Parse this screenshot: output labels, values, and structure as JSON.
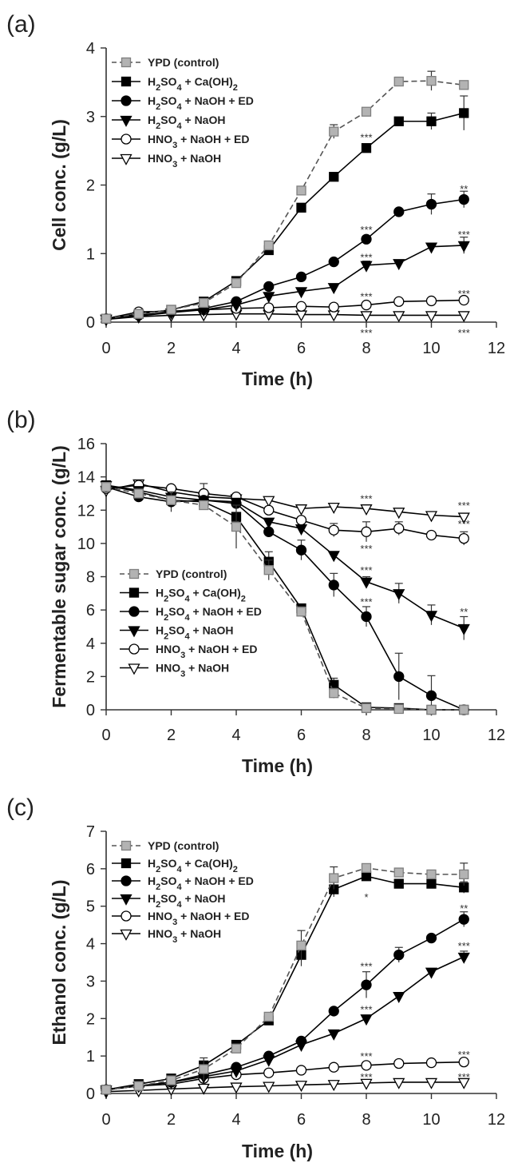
{
  "chart_data": [
    {
      "type": "line",
      "panel_label": "(a)",
      "xlabel": "Time (h)",
      "ylabel": "Cell conc. (g/L)",
      "xlim": [
        0,
        12
      ],
      "ylim": [
        0,
        4
      ],
      "xticks": [
        "0",
        "2",
        "4",
        "6",
        "8",
        "10",
        "12"
      ],
      "yticks": [
        "0",
        "1",
        "2",
        "3",
        "4"
      ],
      "legend_position": "top-left",
      "x": [
        0,
        1,
        2,
        3,
        4,
        5,
        6,
        7,
        8,
        9,
        10,
        11
      ],
      "series": [
        {
          "name": "YPD (control)",
          "values": [
            0.05,
            0.12,
            0.18,
            0.28,
            0.57,
            1.12,
            1.92,
            2.78,
            3.07,
            3.51,
            3.52,
            3.46
          ],
          "err": [
            0,
            0,
            0,
            0,
            0,
            0,
            0,
            0.1,
            0,
            0,
            0.14,
            0
          ]
        },
        {
          "name": "H2SO4 + Ca(OH)2",
          "values": [
            0.05,
            0.12,
            0.18,
            0.3,
            0.6,
            1.05,
            1.67,
            2.12,
            2.54,
            2.93,
            2.93,
            3.05
          ],
          "err": [
            0,
            0,
            0,
            0,
            0,
            0,
            0,
            0,
            0,
            0,
            0.12,
            0.25
          ]
        },
        {
          "name": "H2SO4 + NaOH + ED",
          "values": [
            0.05,
            0.1,
            0.15,
            0.2,
            0.3,
            0.52,
            0.66,
            0.88,
            1.21,
            1.61,
            1.72,
            1.79
          ],
          "err": [
            0,
            0,
            0,
            0,
            0,
            0,
            0,
            0,
            0,
            0,
            0.15,
            0.12
          ]
        },
        {
          "name": "H2SO4 + NaOH",
          "values": [
            0.05,
            0.09,
            0.14,
            0.18,
            0.25,
            0.38,
            0.45,
            0.51,
            0.83,
            0.86,
            1.1,
            1.12
          ],
          "err": [
            0,
            0,
            0,
            0,
            0,
            0,
            0,
            0,
            0.06,
            0,
            0.05,
            0.12
          ]
        },
        {
          "name": "HNO3 + NaOH + ED",
          "values": [
            0.05,
            0.15,
            0.16,
            0.18,
            0.2,
            0.21,
            0.23,
            0.22,
            0.25,
            0.3,
            0.31,
            0.32
          ],
          "err": [
            0,
            0,
            0,
            0,
            0,
            0,
            0,
            0,
            0,
            0,
            0,
            0.04
          ]
        },
        {
          "name": "HNO3 + NaOH",
          "values": [
            0.04,
            0.08,
            0.1,
            0.11,
            0.12,
            0.12,
            0.11,
            0.11,
            0.1,
            0.1,
            0.1,
            0.1
          ],
          "err": [
            0,
            0,
            0,
            0,
            0,
            0,
            0,
            0,
            0,
            0,
            0,
            0
          ]
        }
      ],
      "annotations": [
        {
          "text": "***",
          "x": 8,
          "y": 2.7
        },
        {
          "text": "**",
          "x": 11,
          "y": 1.95
        },
        {
          "text": "***",
          "x": 8,
          "y": 1.35
        },
        {
          "text": "***",
          "x": 8,
          "y": 0.95
        },
        {
          "text": "***",
          "x": 11,
          "y": 1.28
        },
        {
          "text": "***",
          "x": 8,
          "y": 0.38
        },
        {
          "text": "***",
          "x": 11,
          "y": 0.42
        },
        {
          "text": "***",
          "x": 8,
          "y": -0.15
        },
        {
          "text": "***",
          "x": 11,
          "y": -0.15
        }
      ]
    },
    {
      "type": "line",
      "panel_label": "(b)",
      "xlabel": "Time (h)",
      "ylabel": "Fermentable sugar conc. (g/L)",
      "xlim": [
        0,
        12
      ],
      "ylim": [
        0,
        16
      ],
      "xticks": [
        "0",
        "2",
        "4",
        "6",
        "8",
        "10",
        "12"
      ],
      "yticks": [
        "0",
        "2",
        "4",
        "6",
        "8",
        "10",
        "12",
        "14",
        "16"
      ],
      "legend_position": "bottom-left",
      "x": [
        0,
        1,
        2,
        3,
        4,
        5,
        6,
        7,
        8,
        9,
        10,
        11
      ],
      "series": [
        {
          "name": "YPD (control)",
          "values": [
            13.4,
            13.0,
            12.6,
            12.3,
            11.0,
            8.4,
            5.9,
            1.0,
            0.1,
            0.05,
            0.0,
            0.0
          ],
          "err": [
            0,
            0,
            0,
            0,
            1.3,
            0.6,
            0.3,
            0.3,
            0,
            0,
            0,
            0
          ]
        },
        {
          "name": "H2SO4 + Ca(OH)2",
          "values": [
            13.5,
            13.1,
            12.6,
            12.5,
            11.6,
            8.9,
            6.1,
            1.5,
            0.15,
            0.1,
            0.0,
            0.0
          ],
          "err": [
            0,
            0,
            0,
            0,
            0,
            0.6,
            0,
            0.4,
            0,
            0,
            0,
            0
          ]
        },
        {
          "name": "H2SO4 + NaOH + ED",
          "values": [
            13.4,
            12.8,
            12.5,
            12.6,
            12.4,
            10.7,
            9.6,
            7.5,
            5.6,
            2.0,
            0.85,
            0.0
          ],
          "err": [
            0,
            0,
            0.6,
            0,
            0,
            0,
            0.6,
            0.7,
            0.6,
            1.4,
            1.2,
            0
          ]
        },
        {
          "name": "H2SO4 + NaOH",
          "values": [
            13.5,
            13.2,
            12.8,
            12.6,
            12.5,
            11.3,
            10.9,
            9.3,
            7.7,
            7.0,
            5.7,
            4.9
          ],
          "err": [
            0,
            0,
            0,
            0,
            0,
            0,
            0,
            0,
            0.3,
            0.6,
            0.6,
            0.7
          ]
        },
        {
          "name": "HNO3 + NaOH + ED",
          "values": [
            13.3,
            13.5,
            13.3,
            13.0,
            12.8,
            12.0,
            11.4,
            10.8,
            10.7,
            10.9,
            10.5,
            10.3
          ],
          "err": [
            0,
            0,
            0,
            0.6,
            0,
            0,
            0,
            0.4,
            0.6,
            0.4,
            0,
            0.4
          ]
        },
        {
          "name": "HNO3 + NaOH",
          "values": [
            13.2,
            13.6,
            13.1,
            12.8,
            12.7,
            12.6,
            12.1,
            12.2,
            12.1,
            11.9,
            11.7,
            11.6
          ],
          "err": [
            0,
            0,
            0,
            0,
            0,
            0,
            0,
            0,
            0,
            0,
            0,
            0
          ]
        }
      ],
      "annotations": [
        {
          "text": "***",
          "x": 8,
          "y": 12.7
        },
        {
          "text": "***",
          "x": 11,
          "y": 12.3
        },
        {
          "text": "***",
          "x": 8,
          "y": 9.7
        },
        {
          "text": "***",
          "x": 8,
          "y": 8.4
        },
        {
          "text": "***",
          "x": 8,
          "y": 6.5
        },
        {
          "text": "**",
          "x": 11,
          "y": 5.9
        },
        {
          "text": "***",
          "x": 11,
          "y": 11.2
        }
      ]
    },
    {
      "type": "line",
      "panel_label": "(c)",
      "xlabel": "Time (h)",
      "ylabel": "Ethanol conc. (g/L)",
      "xlim": [
        0,
        12
      ],
      "ylim": [
        0,
        7
      ],
      "xticks": [
        "0",
        "2",
        "4",
        "6",
        "8",
        "10",
        "12"
      ],
      "yticks": [
        "0",
        "1",
        "2",
        "3",
        "4",
        "5",
        "6",
        "7"
      ],
      "legend_position": "top-left",
      "x": [
        0,
        1,
        2,
        3,
        4,
        5,
        6,
        7,
        8,
        9,
        10,
        11
      ],
      "series": [
        {
          "name": "YPD (control)",
          "values": [
            0.1,
            0.2,
            0.35,
            0.65,
            1.2,
            2.05,
            3.95,
            5.75,
            6.02,
            5.9,
            5.85,
            5.85
          ],
          "err": [
            0,
            0,
            0,
            0.3,
            0,
            0,
            0.4,
            0.3,
            0,
            0,
            0,
            0.3
          ]
        },
        {
          "name": "H2SO4 + Ca(OH)2",
          "values": [
            0.1,
            0.25,
            0.4,
            0.75,
            1.3,
            1.95,
            3.7,
            5.45,
            5.8,
            5.6,
            5.6,
            5.5
          ],
          "err": [
            0,
            0,
            0,
            0,
            0,
            0,
            0.3,
            0.2,
            0,
            0,
            0,
            0.15
          ]
        },
        {
          "name": "H2SO4 + NaOH + ED",
          "values": [
            0.1,
            0.2,
            0.3,
            0.5,
            0.7,
            1.0,
            1.4,
            2.2,
            2.9,
            3.7,
            4.15,
            4.65
          ],
          "err": [
            0,
            0,
            0,
            0,
            0,
            0,
            0,
            0,
            0.35,
            0.2,
            0,
            0.2
          ]
        },
        {
          "name": "H2SO4 + NaOH",
          "values": [
            0.1,
            0.2,
            0.3,
            0.45,
            0.6,
            0.9,
            1.3,
            1.6,
            2.0,
            2.6,
            3.25,
            3.65
          ],
          "err": [
            0,
            0,
            0,
            0,
            0,
            0,
            0,
            0,
            0,
            0,
            0,
            0.15
          ]
        },
        {
          "name": "HNO3 + NaOH + ED",
          "values": [
            0.1,
            0.2,
            0.25,
            0.4,
            0.5,
            0.55,
            0.62,
            0.7,
            0.75,
            0.8,
            0.82,
            0.84
          ],
          "err": [
            0,
            0,
            0,
            0,
            0,
            0,
            0,
            0,
            0,
            0,
            0,
            0
          ]
        },
        {
          "name": "HNO3 + NaOH",
          "values": [
            0.05,
            0.08,
            0.12,
            0.15,
            0.18,
            0.2,
            0.23,
            0.25,
            0.28,
            0.3,
            0.3,
            0.3
          ],
          "err": [
            0,
            0,
            0,
            0,
            0,
            0,
            0,
            0,
            0,
            0,
            0,
            0
          ]
        }
      ],
      "annotations": [
        {
          "text": "*",
          "x": 8,
          "y": 5.25
        },
        {
          "text": "**",
          "x": 11,
          "y": 4.95
        },
        {
          "text": "***",
          "x": 8,
          "y": 3.4
        },
        {
          "text": "***",
          "x": 8,
          "y": 2.25
        },
        {
          "text": "***",
          "x": 11,
          "y": 3.95
        },
        {
          "text": "***",
          "x": 8,
          "y": 1.0
        },
        {
          "text": "***",
          "x": 11,
          "y": 1.05
        },
        {
          "text": "***",
          "x": 8,
          "y": 0.45
        },
        {
          "text": "***",
          "x": 11,
          "y": 0.45
        }
      ]
    }
  ],
  "style": {
    "series_markers": [
      "square",
      "square",
      "circle",
      "triangle-down",
      "circle",
      "triangle-down"
    ],
    "series_fill": [
      "#b3b3b3",
      "#000000",
      "#000000",
      "#000000",
      "#ffffff",
      "#ffffff"
    ],
    "series_stroke": [
      "#7f7f7f",
      "#000000",
      "#000000",
      "#000000",
      "#000000",
      "#000000"
    ],
    "series_dashed": [
      true,
      false,
      false,
      false,
      false,
      false
    ]
  }
}
